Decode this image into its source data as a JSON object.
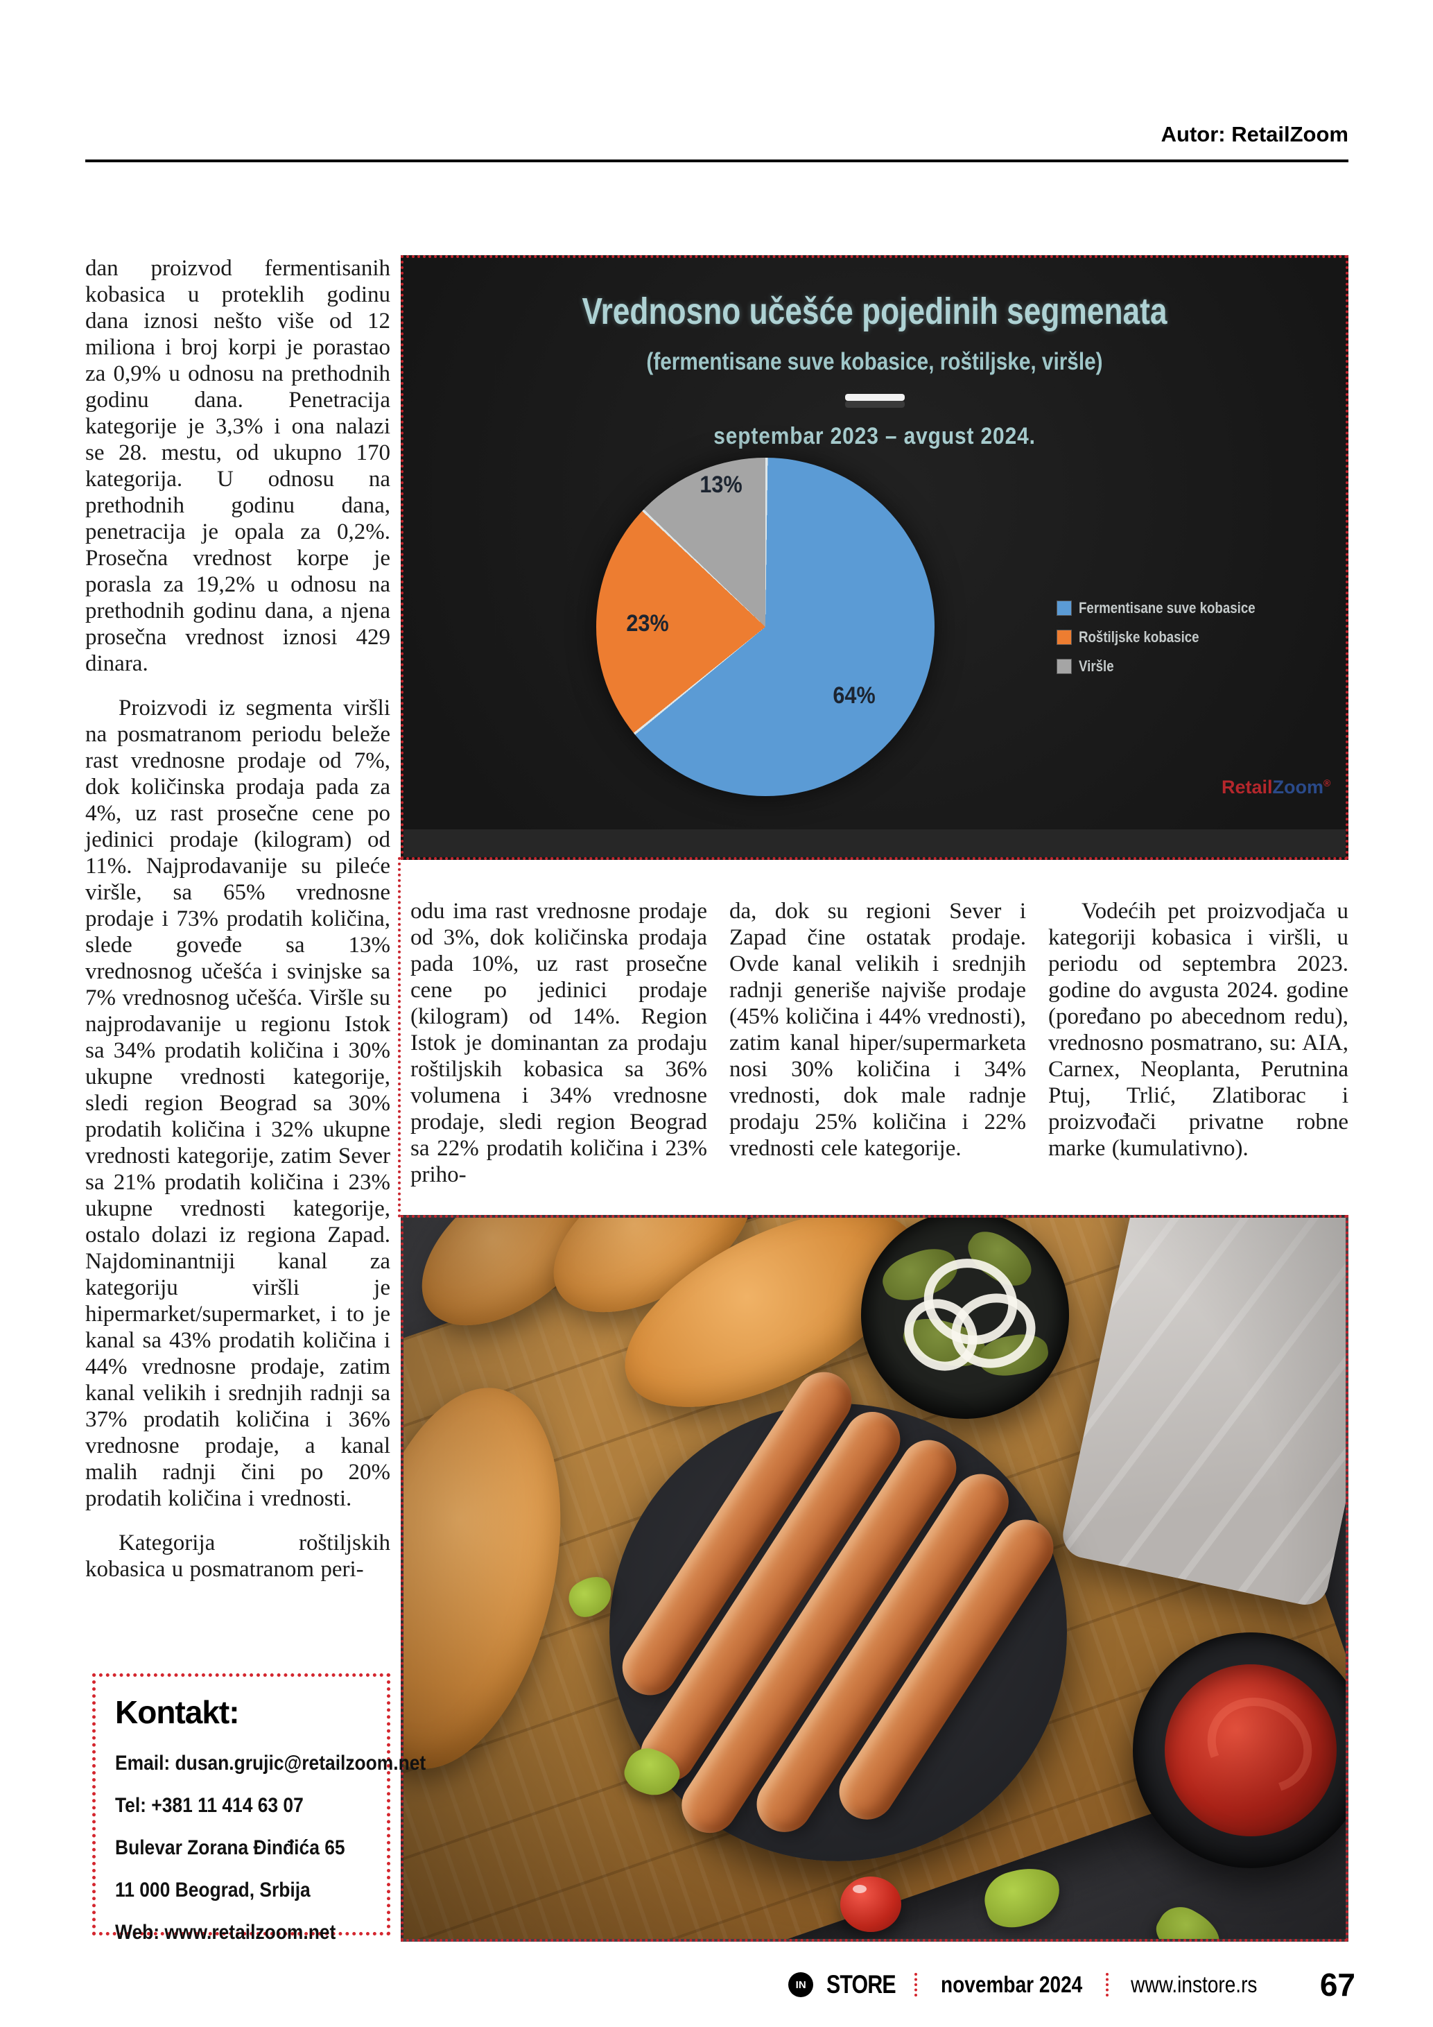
{
  "page": {
    "author_line": "Autor: RetailZoom"
  },
  "article": {
    "col1_p1": "dan proizvod fermentisanih kobasica u proteklih godinu dana iznosi nešto više od 12 miliona i broj korpi je porastao za 0,9% u odnosu na prethodnih godinu dana. Penetracija kategorije je 3,3% i ona nalazi se 28. mestu, od ukupno 170 kategorija. U odnosu na prethodnih godinu dana, penetracija je opala za 0,2%. Prosečna vrednost korpe je porasla za 19,2% u odnosu na prethodnih godinu dana, a njena prosečna vrednost iznosi 429 dinara.",
    "col1_p2": "Proizvodi iz segmenta viršli na posmatranom periodu beleže rast vrednosne prodaje od 7%, dok količinska prodaja pada za 4%, uz rast prosečne cene po jedinici prodaje (kilogram) od 11%. Najprodavanije su pileće viršle, sa 65% vrednosne prodaje i 73% prodatih količina, slede goveđe sa 13% vrednosnog učešća i svinjske sa 7% vrednosnog učešća. Viršle su najprodavanije u regionu Istok sa 34% prodatih količina i 30% ukupne vrednosti kategorije, sledi region Beograd sa 30% prodatih količina i 32% ukupne vrednosti kategorije, zatim Sever sa 21% prodatih količina i 23% ukupne vrednosti kategorije, ostalo dolazi iz regiona Zapad. Najdominantniji kanal za kategoriju viršli je hipermarket/supermarket, i to je kanal sa 43% prodatih količina i 44% vrednosne prodaje, zatim kanal velikih i srednjih radnji sa 37% prodatih količina i 36% vrednosne prodaje, a kanal malih radnji čini po 20% prodatih količina i vrednosti.",
    "col1_p3": "Kategorija roštiljskih kobasica u posmatranom peri-",
    "col2_text": "odu ima rast vrednosne prodaje od 3%, dok količinska prodaja pada 10%, uz rast prosečne cene po jedinici prodaje (kilogram) od 14%. Region Istok je dominantan za prodaju roštiljskih kobasica sa 36% volumena i 34% vrednosne prodaje, sledi region Beograd sa 22% prodatih količina i 23% priho-",
    "col3_text": "da, dok su regioni Sever i Zapad čine ostatak prodaje. Ovde kanal velikih i srednjih radnji generiše najviše prodaje (45% količina i 44% vrednosti), zatim kanal hiper/supermarketa nosi 30% količina i 34% vrednosti, dok male radnje prodaju 25% količina i 22% vrednosti cele kategorije.",
    "col4_text": "Vodećih pet proizvodjača u kategoriji kobasica i viršli, u periodu od septembra 2023. godine do avgusta 2024. godine (poređano po abecednom redu), vrednosno posmatrano, su: AIA, Carnex, Neoplanta, Perutnina Ptuj, Trlić, Zlatiborac i proizvođači privatne robne marke (kumulativno)."
  },
  "chart_data": {
    "type": "pie",
    "title": "Vrednosno učešće pojedinih segmenata",
    "subtitle": "(fermentisane suve kobasice, roštiljske, viršle)",
    "period": "septembar 2023 – avgust 2024.",
    "labels": [
      "Fermentisane suve kobasice",
      "Roštiljske kobasice",
      "Viršle"
    ],
    "values": [
      64,
      23,
      13
    ],
    "slice_labels": [
      "64%",
      "23%",
      "13%"
    ],
    "colors": [
      "#5b9bd5",
      "#ed7d31",
      "#a5a5a5"
    ],
    "background": "#1b1b1b",
    "legend_position": "right",
    "start_angle_deg": 0,
    "direction": "clockwise"
  },
  "chart_watermark": {
    "retail": "Retail",
    "zoom": "Zoom",
    "reg": "®"
  },
  "kontakt": {
    "title": "Kontakt:",
    "lines": [
      "Email: dusan.grujic@retailzoom.net",
      "Tel:   +381 11 414 63 07",
      "Bulevar Zorana Đinđića 65",
      "11 000 Beograd, Srbija",
      "Web: www.retailzoom.net"
    ]
  },
  "footer": {
    "logo_in": "IN",
    "brand": "STORE",
    "issue": "novembar 2024",
    "site": "www.instore.rs",
    "page_number": "67"
  }
}
